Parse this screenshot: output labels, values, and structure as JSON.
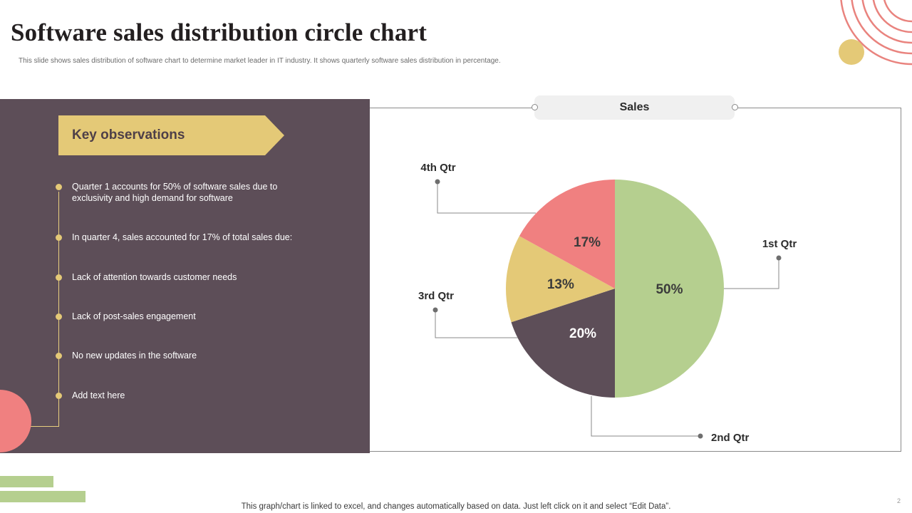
{
  "page": {
    "title": "Software sales distribution circle chart",
    "subtitle": "This slide shows sales distribution of software chart to determine market leader in IT industry. It shows quarterly software sales distribution in percentage.",
    "footer_note": "This graph/chart is linked to excel, and changes automatically based on data. Just left click on it and select “Edit Data”.",
    "page_number": "2"
  },
  "observations": {
    "heading": "Key observations",
    "items": [
      "Quarter 1 accounts for 50% of software sales due to exclusivity and high demand for software",
      "In quarter 4, sales accounted for 17% of total sales due:",
      "Lack of attention towards customer needs",
      "Lack of post-sales engagement",
      "No new updates in the software",
      "Add text here"
    ]
  },
  "colors": {
    "panel": "#5d4e58",
    "accent_yellow": "#e4c977",
    "accent_pink": "#f08080",
    "accent_green": "#b5cf8f",
    "ring_pink": "#e9837e"
  },
  "chart_data": {
    "type": "pie",
    "title": "Sales",
    "categories": [
      "1st Qtr",
      "2nd Qtr",
      "3rd Qtr",
      "4th Qtr"
    ],
    "values": [
      50,
      20,
      13,
      17
    ],
    "value_labels": [
      "50%",
      "20%",
      "13%",
      "17%"
    ],
    "colors": [
      "#b5cf8f",
      "#5d4e58",
      "#e4c977",
      "#f08080"
    ],
    "label_colors": [
      "#3b3b3b",
      "#ffffff",
      "#3b3b3b",
      "#3b3b3b"
    ],
    "start_angle_deg": 0,
    "direction": "clockwise"
  }
}
